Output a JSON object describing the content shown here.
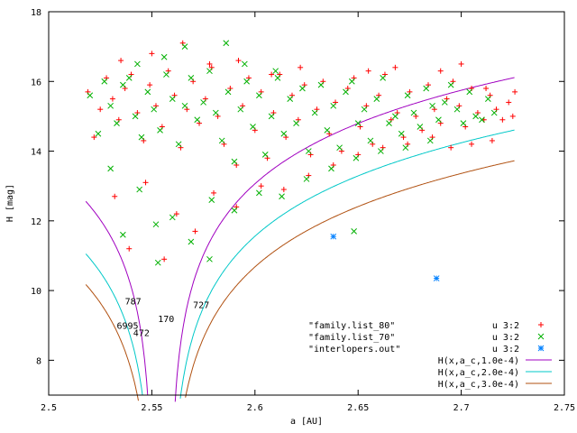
{
  "chart_data": {
    "type": "scatter",
    "title": "",
    "xlabel": "a [AU]",
    "ylabel": "H [mag]",
    "xlim": [
      2.5,
      2.75
    ],
    "ylim": [
      7,
      18
    ],
    "x_ticks": [
      2.5,
      2.55,
      2.6,
      2.65,
      2.7,
      2.75
    ],
    "y_ticks": [
      8,
      10,
      12,
      14,
      16,
      18
    ],
    "x_tick_labels": [
      "2.5",
      "2.55",
      "2.6",
      "2.65",
      "2.7",
      "2.75"
    ],
    "y_tick_labels": [
      "8",
      "10",
      "12",
      "14",
      "16",
      "18"
    ],
    "grid": false,
    "legend_position": "bottom-right",
    "series": [
      {
        "name": "u 3:2",
        "file_label": "\"family.list_80\"",
        "marker": "plus",
        "color": "#ff0000",
        "description": "dense cloud (~1500 pts), a 2.52–2.73, H 10.6–17.1",
        "points": [
          [
            2.519,
            15.7
          ],
          [
            2.522,
            14.4
          ],
          [
            2.525,
            15.2
          ],
          [
            2.528,
            16.1
          ],
          [
            2.531,
            15.5
          ],
          [
            2.534,
            14.9
          ],
          [
            2.537,
            15.8
          ],
          [
            2.54,
            16.2
          ],
          [
            2.543,
            15.1
          ],
          [
            2.546,
            14.3
          ],
          [
            2.549,
            15.9
          ],
          [
            2.552,
            15.3
          ],
          [
            2.555,
            14.7
          ],
          [
            2.558,
            16.3
          ],
          [
            2.561,
            15.6
          ],
          [
            2.564,
            14.1
          ],
          [
            2.567,
            15.2
          ],
          [
            2.57,
            16.0
          ],
          [
            2.573,
            14.8
          ],
          [
            2.576,
            15.5
          ],
          [
            2.579,
            16.4
          ],
          [
            2.582,
            15.0
          ],
          [
            2.585,
            14.2
          ],
          [
            2.588,
            15.8
          ],
          [
            2.591,
            13.6
          ],
          [
            2.594,
            15.3
          ],
          [
            2.597,
            16.1
          ],
          [
            2.6,
            14.6
          ],
          [
            2.603,
            15.7
          ],
          [
            2.606,
            13.8
          ],
          [
            2.609,
            15.1
          ],
          [
            2.612,
            16.2
          ],
          [
            2.615,
            14.4
          ],
          [
            2.618,
            15.6
          ],
          [
            2.621,
            14.9
          ],
          [
            2.624,
            15.9
          ],
          [
            2.627,
            13.9
          ],
          [
            2.63,
            15.2
          ],
          [
            2.633,
            16.0
          ],
          [
            2.636,
            14.5
          ],
          [
            2.639,
            15.4
          ],
          [
            2.642,
            14.0
          ],
          [
            2.645,
            15.8
          ],
          [
            2.648,
            16.1
          ],
          [
            2.651,
            14.7
          ],
          [
            2.654,
            15.3
          ],
          [
            2.657,
            14.2
          ],
          [
            2.66,
            15.6
          ],
          [
            2.663,
            16.2
          ],
          [
            2.666,
            14.9
          ],
          [
            2.669,
            15.1
          ],
          [
            2.672,
            14.4
          ],
          [
            2.675,
            15.7
          ],
          [
            2.678,
            15.0
          ],
          [
            2.681,
            14.6
          ],
          [
            2.684,
            15.9
          ],
          [
            2.687,
            15.2
          ],
          [
            2.69,
            14.8
          ],
          [
            2.693,
            15.5
          ],
          [
            2.696,
            16.0
          ],
          [
            2.699,
            15.3
          ],
          [
            2.702,
            14.7
          ],
          [
            2.705,
            15.8
          ],
          [
            2.708,
            15.1
          ],
          [
            2.711,
            14.9
          ],
          [
            2.714,
            15.6
          ],
          [
            2.717,
            15.2
          ],
          [
            2.72,
            14.9
          ],
          [
            2.723,
            15.4
          ],
          [
            2.726,
            15.7
          ],
          [
            2.532,
            12.7
          ],
          [
            2.539,
            11.2
          ],
          [
            2.547,
            13.1
          ],
          [
            2.556,
            10.9
          ],
          [
            2.562,
            12.2
          ],
          [
            2.571,
            11.7
          ],
          [
            2.58,
            12.8
          ],
          [
            2.591,
            12.4
          ],
          [
            2.603,
            13.0
          ],
          [
            2.614,
            12.9
          ],
          [
            2.626,
            13.3
          ],
          [
            2.638,
            13.6
          ],
          [
            2.65,
            13.9
          ],
          [
            2.662,
            14.1
          ],
          [
            2.674,
            14.2
          ],
          [
            2.686,
            14.4
          ],
          [
            2.535,
            16.6
          ],
          [
            2.55,
            16.8
          ],
          [
            2.565,
            17.1
          ],
          [
            2.578,
            16.5
          ],
          [
            2.592,
            16.6
          ],
          [
            2.608,
            16.2
          ],
          [
            2.622,
            16.4
          ],
          [
            2.655,
            16.3
          ],
          [
            2.668,
            16.4
          ],
          [
            2.69,
            16.3
          ],
          [
            2.7,
            16.5
          ],
          [
            2.712,
            15.8
          ],
          [
            2.725,
            15.0
          ],
          [
            2.715,
            14.3
          ],
          [
            2.705,
            14.2
          ],
          [
            2.695,
            14.1
          ]
        ]
      },
      {
        "name": "u 3:2",
        "file_label": "\"family.list_70\"",
        "marker": "cross",
        "color": "#00b000",
        "description": "subset cloud (~1200 pts), a 2.52–2.72, H 10.6–17.1",
        "points": [
          [
            2.52,
            15.6
          ],
          [
            2.524,
            14.5
          ],
          [
            2.527,
            16.0
          ],
          [
            2.53,
            15.3
          ],
          [
            2.533,
            14.8
          ],
          [
            2.536,
            15.9
          ],
          [
            2.539,
            16.1
          ],
          [
            2.542,
            15.0
          ],
          [
            2.545,
            14.4
          ],
          [
            2.548,
            15.7
          ],
          [
            2.551,
            15.2
          ],
          [
            2.554,
            14.6
          ],
          [
            2.557,
            16.2
          ],
          [
            2.56,
            15.5
          ],
          [
            2.563,
            14.2
          ],
          [
            2.566,
            15.3
          ],
          [
            2.569,
            16.1
          ],
          [
            2.572,
            14.9
          ],
          [
            2.575,
            15.4
          ],
          [
            2.578,
            16.3
          ],
          [
            2.581,
            15.1
          ],
          [
            2.584,
            14.3
          ],
          [
            2.587,
            15.7
          ],
          [
            2.59,
            13.7
          ],
          [
            2.593,
            15.2
          ],
          [
            2.596,
            16.0
          ],
          [
            2.599,
            14.7
          ],
          [
            2.602,
            15.6
          ],
          [
            2.605,
            13.9
          ],
          [
            2.608,
            15.0
          ],
          [
            2.611,
            16.1
          ],
          [
            2.614,
            14.5
          ],
          [
            2.617,
            15.5
          ],
          [
            2.62,
            14.8
          ],
          [
            2.623,
            15.8
          ],
          [
            2.626,
            14.0
          ],
          [
            2.629,
            15.1
          ],
          [
            2.632,
            15.9
          ],
          [
            2.635,
            14.6
          ],
          [
            2.638,
            15.3
          ],
          [
            2.641,
            14.1
          ],
          [
            2.644,
            15.7
          ],
          [
            2.647,
            16.0
          ],
          [
            2.65,
            14.8
          ],
          [
            2.653,
            15.2
          ],
          [
            2.656,
            14.3
          ],
          [
            2.659,
            15.5
          ],
          [
            2.662,
            16.1
          ],
          [
            2.665,
            14.8
          ],
          [
            2.668,
            15.0
          ],
          [
            2.671,
            14.5
          ],
          [
            2.674,
            15.6
          ],
          [
            2.677,
            15.1
          ],
          [
            2.68,
            14.7
          ],
          [
            2.683,
            15.8
          ],
          [
            2.686,
            15.3
          ],
          [
            2.689,
            14.9
          ],
          [
            2.692,
            15.4
          ],
          [
            2.695,
            15.9
          ],
          [
            2.698,
            15.2
          ],
          [
            2.701,
            14.8
          ],
          [
            2.704,
            15.7
          ],
          [
            2.707,
            15.0
          ],
          [
            2.71,
            14.9
          ],
          [
            2.713,
            15.5
          ],
          [
            2.716,
            15.1
          ],
          [
            2.53,
            13.5
          ],
          [
            2.536,
            11.6
          ],
          [
            2.544,
            12.9
          ],
          [
            2.553,
            10.8
          ],
          [
            2.56,
            12.1
          ],
          [
            2.569,
            11.4
          ],
          [
            2.579,
            12.6
          ],
          [
            2.59,
            12.3
          ],
          [
            2.602,
            12.8
          ],
          [
            2.613,
            12.7
          ],
          [
            2.625,
            13.2
          ],
          [
            2.637,
            13.5
          ],
          [
            2.649,
            13.8
          ],
          [
            2.661,
            14.0
          ],
          [
            2.673,
            14.1
          ],
          [
            2.685,
            14.3
          ],
          [
            2.543,
            16.5
          ],
          [
            2.556,
            16.7
          ],
          [
            2.566,
            17.0
          ],
          [
            2.586,
            17.1
          ],
          [
            2.595,
            16.5
          ],
          [
            2.61,
            16.3
          ],
          [
            2.648,
            11.7
          ],
          [
            2.578,
            10.9
          ],
          [
            2.552,
            11.9
          ]
        ]
      },
      {
        "name": "u 3:2",
        "file_label": "\"interlopers.out\"",
        "marker": "star",
        "color": "#0080ff",
        "points": [
          [
            2.638,
            11.55
          ],
          [
            2.688,
            10.35
          ]
        ]
      }
    ],
    "curves": [
      {
        "name": "H(x,a_c,1.0e-4)",
        "color": "#a000c0",
        "a_c": 2.5505,
        "C": 0.0001
      },
      {
        "name": "H(x,a_c,2.0e-4)",
        "color": "#00c8c8",
        "a_c": 2.5505,
        "C": 0.0002
      },
      {
        "name": "H(x,a_c,3.0e-4)",
        "color": "#b05010",
        "a_c": 2.5505,
        "C": 0.0003
      }
    ],
    "annotations": [
      {
        "text": "787",
        "x": 2.537,
        "y": 9.6
      },
      {
        "text": "170",
        "x": 2.553,
        "y": 9.1
      },
      {
        "text": "727",
        "x": 2.57,
        "y": 9.5
      },
      {
        "text": "6995",
        "x": 2.533,
        "y": 8.9
      },
      {
        "text": "472",
        "x": 2.541,
        "y": 8.7
      }
    ]
  }
}
